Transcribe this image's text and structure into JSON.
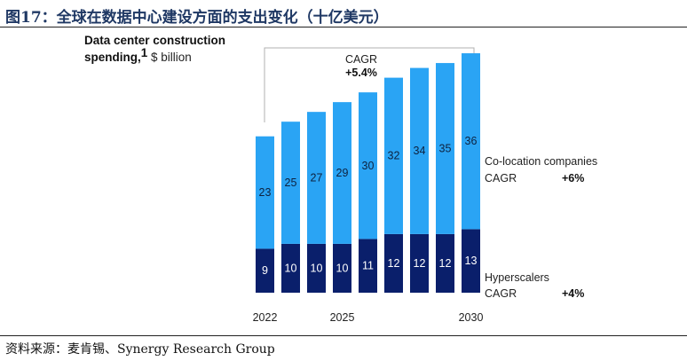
{
  "figure": {
    "title": "图17：全球在数据中心建设方面的支出变化（十亿美元）",
    "source": "资料来源：麦肯锡、Synergy Research Group"
  },
  "colors": {
    "colocation": "#2aa4f4",
    "hyperscalers": "#0a1f6b",
    "bracket": "#b0b0b0"
  },
  "chart_data": {
    "type": "bar",
    "stacked": true,
    "title_line1": "Data center construction",
    "title_line2_bold": "spending,",
    "title_sup": "1",
    "title_line2_rest": " $ billion",
    "categories": [
      "2022",
      "2023",
      "2024",
      "2025",
      "2026",
      "2027",
      "2028",
      "2029",
      "2030"
    ],
    "tick_labels": [
      "2022",
      "",
      "",
      "2025",
      "",
      "",
      "",
      "",
      "2030"
    ],
    "ylim": [
      0,
      55
    ],
    "series": [
      {
        "name": "Hyperscalers",
        "cagr_label": "CAGR",
        "cagr_value": "+4%",
        "values": [
          9,
          10,
          10,
          10,
          11,
          12,
          12,
          12,
          13
        ]
      },
      {
        "name": "Co-location companies",
        "cagr_label": "CAGR",
        "cagr_value": "+6%",
        "values": [
          23,
          25,
          27,
          29,
          30,
          32,
          34,
          35,
          36
        ]
      }
    ],
    "total_cagr_label": "CAGR",
    "total_cagr_value": "+5.4%"
  }
}
